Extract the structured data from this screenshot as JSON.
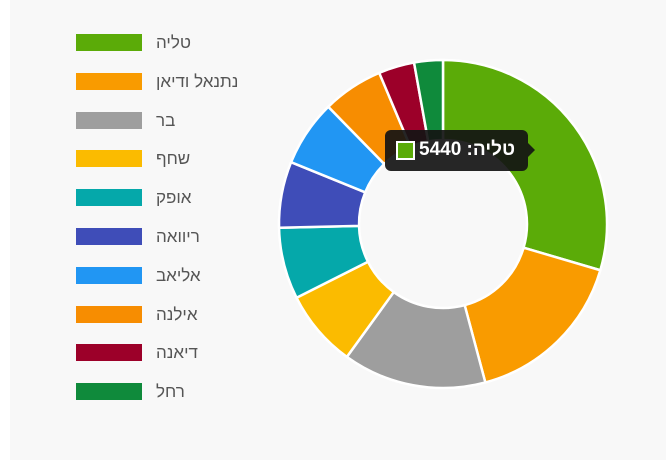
{
  "chart_data": {
    "type": "pie",
    "subtype": "donut",
    "title": "",
    "legend_position": "left",
    "categories": [
      "טליה",
      "נתנאל ודיאן",
      "בר",
      "שחף",
      "אופק",
      "ריוואה",
      "אליאב",
      "אילנה",
      "דיאנה",
      "רחל"
    ],
    "values": [
      5440,
      3000,
      2600,
      1400,
      1300,
      1200,
      1200,
      1100,
      650,
      520
    ],
    "colors": [
      "#5bab08",
      "#f99b00",
      "#9e9e9e",
      "#fbbb00",
      "#05a8aa",
      "#3f4db8",
      "#2196f3",
      "#f78d01",
      "#9c0029",
      "#0f8a3b"
    ]
  },
  "tooltip": {
    "text": "טליה: 5440",
    "color": "#5bab08"
  }
}
